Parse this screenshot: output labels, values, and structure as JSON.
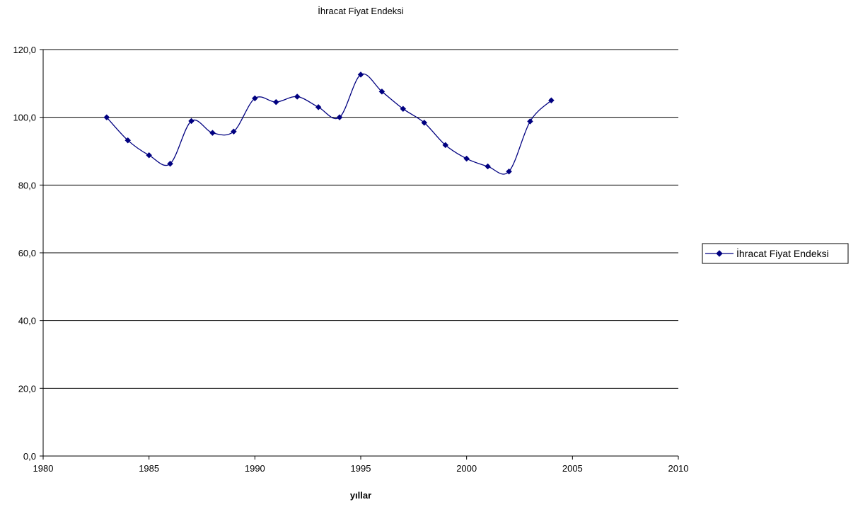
{
  "chart_data": {
    "type": "scatter",
    "title": "İhracat Fiyat Endeksi",
    "xlabel": "yıllar",
    "ylabel": "",
    "xlim": [
      1980,
      2010
    ],
    "ylim": [
      0,
      120
    ],
    "x_ticks": [
      1980,
      1985,
      1990,
      1995,
      2000,
      2005,
      2010
    ],
    "x_tick_labels": [
      "1980",
      "1985",
      "1990",
      "1995",
      "2000",
      "2005",
      "2010"
    ],
    "y_ticks": [
      0,
      20,
      40,
      60,
      80,
      100,
      120
    ],
    "y_tick_labels": [
      "0,0",
      "20,0",
      "40,0",
      "60,0",
      "80,0",
      "100,0",
      "120,0"
    ],
    "grid": "horizontal",
    "legend_position": "right",
    "smooth_line": true,
    "series": [
      {
        "name": "İhracat Fiyat Endeksi",
        "color": "#000080",
        "marker": "diamond",
        "x": [
          1983,
          1984,
          1985,
          1986,
          1987,
          1988,
          1989,
          1990,
          1991,
          1992,
          1993,
          1994,
          1995,
          1996,
          1997,
          1998,
          1999,
          2000,
          2001,
          2002,
          2003,
          2004
        ],
        "y": [
          100.0,
          93.2,
          88.8,
          86.3,
          98.9,
          95.4,
          95.8,
          105.6,
          104.5,
          106.1,
          103.0,
          100.0,
          112.6,
          107.6,
          102.5,
          98.4,
          91.8,
          87.8,
          85.5,
          84.0,
          98.8,
          105.0
        ]
      }
    ]
  }
}
